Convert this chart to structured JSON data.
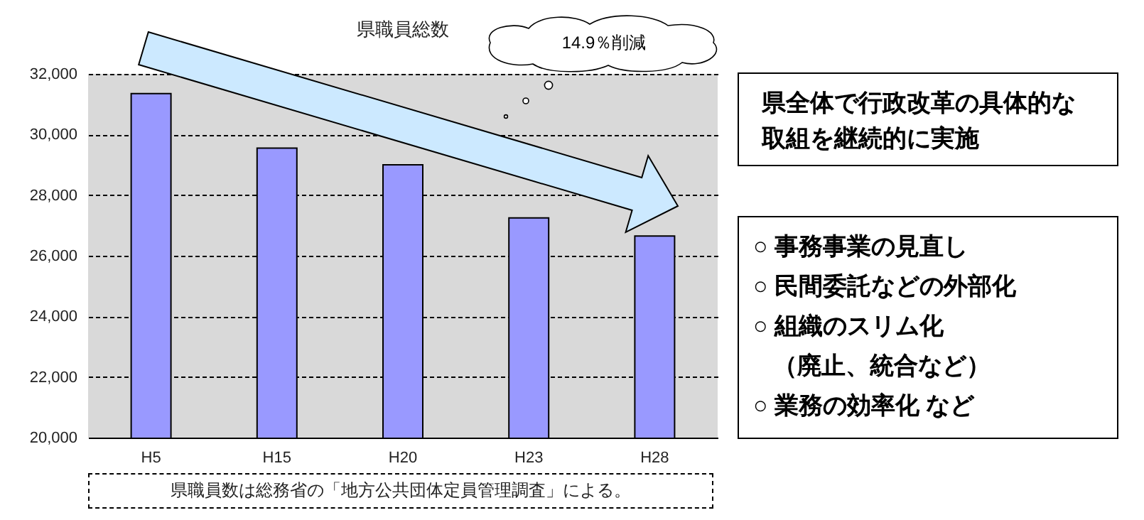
{
  "chart_data": {
    "type": "bar",
    "title": "県職員総数",
    "categories": [
      "H5",
      "H15",
      "H20",
      "H23",
      "H28"
    ],
    "values": [
      31350,
      29550,
      29000,
      27250,
      26650
    ],
    "color": "#9999ff",
    "ylim": [
      20000,
      32000
    ],
    "yticks": [
      {
        "value": 20000,
        "label": "20,000"
      },
      {
        "value": 22000,
        "label": "22,000"
      },
      {
        "value": 24000,
        "label": "24,000"
      },
      {
        "value": 26000,
        "label": "26,000"
      },
      {
        "value": 28000,
        "label": "28,000"
      },
      {
        "value": 30000,
        "label": "30,000"
      },
      {
        "value": 32000,
        "label": "32,000"
      }
    ],
    "grid": "y",
    "annotations": [
      "14.9％削減",
      "県全体で行政改革の具体的な取組を継続的に実施",
      "○ 事務事業の見直し",
      "○ 民間委託などの外部化",
      "○ 組織のスリム化",
      "（廃止、統合など）",
      "○ 業務の効率化 など",
      "県職員数は総務省の「地方公共団体定員管理調査」による。"
    ]
  }
}
